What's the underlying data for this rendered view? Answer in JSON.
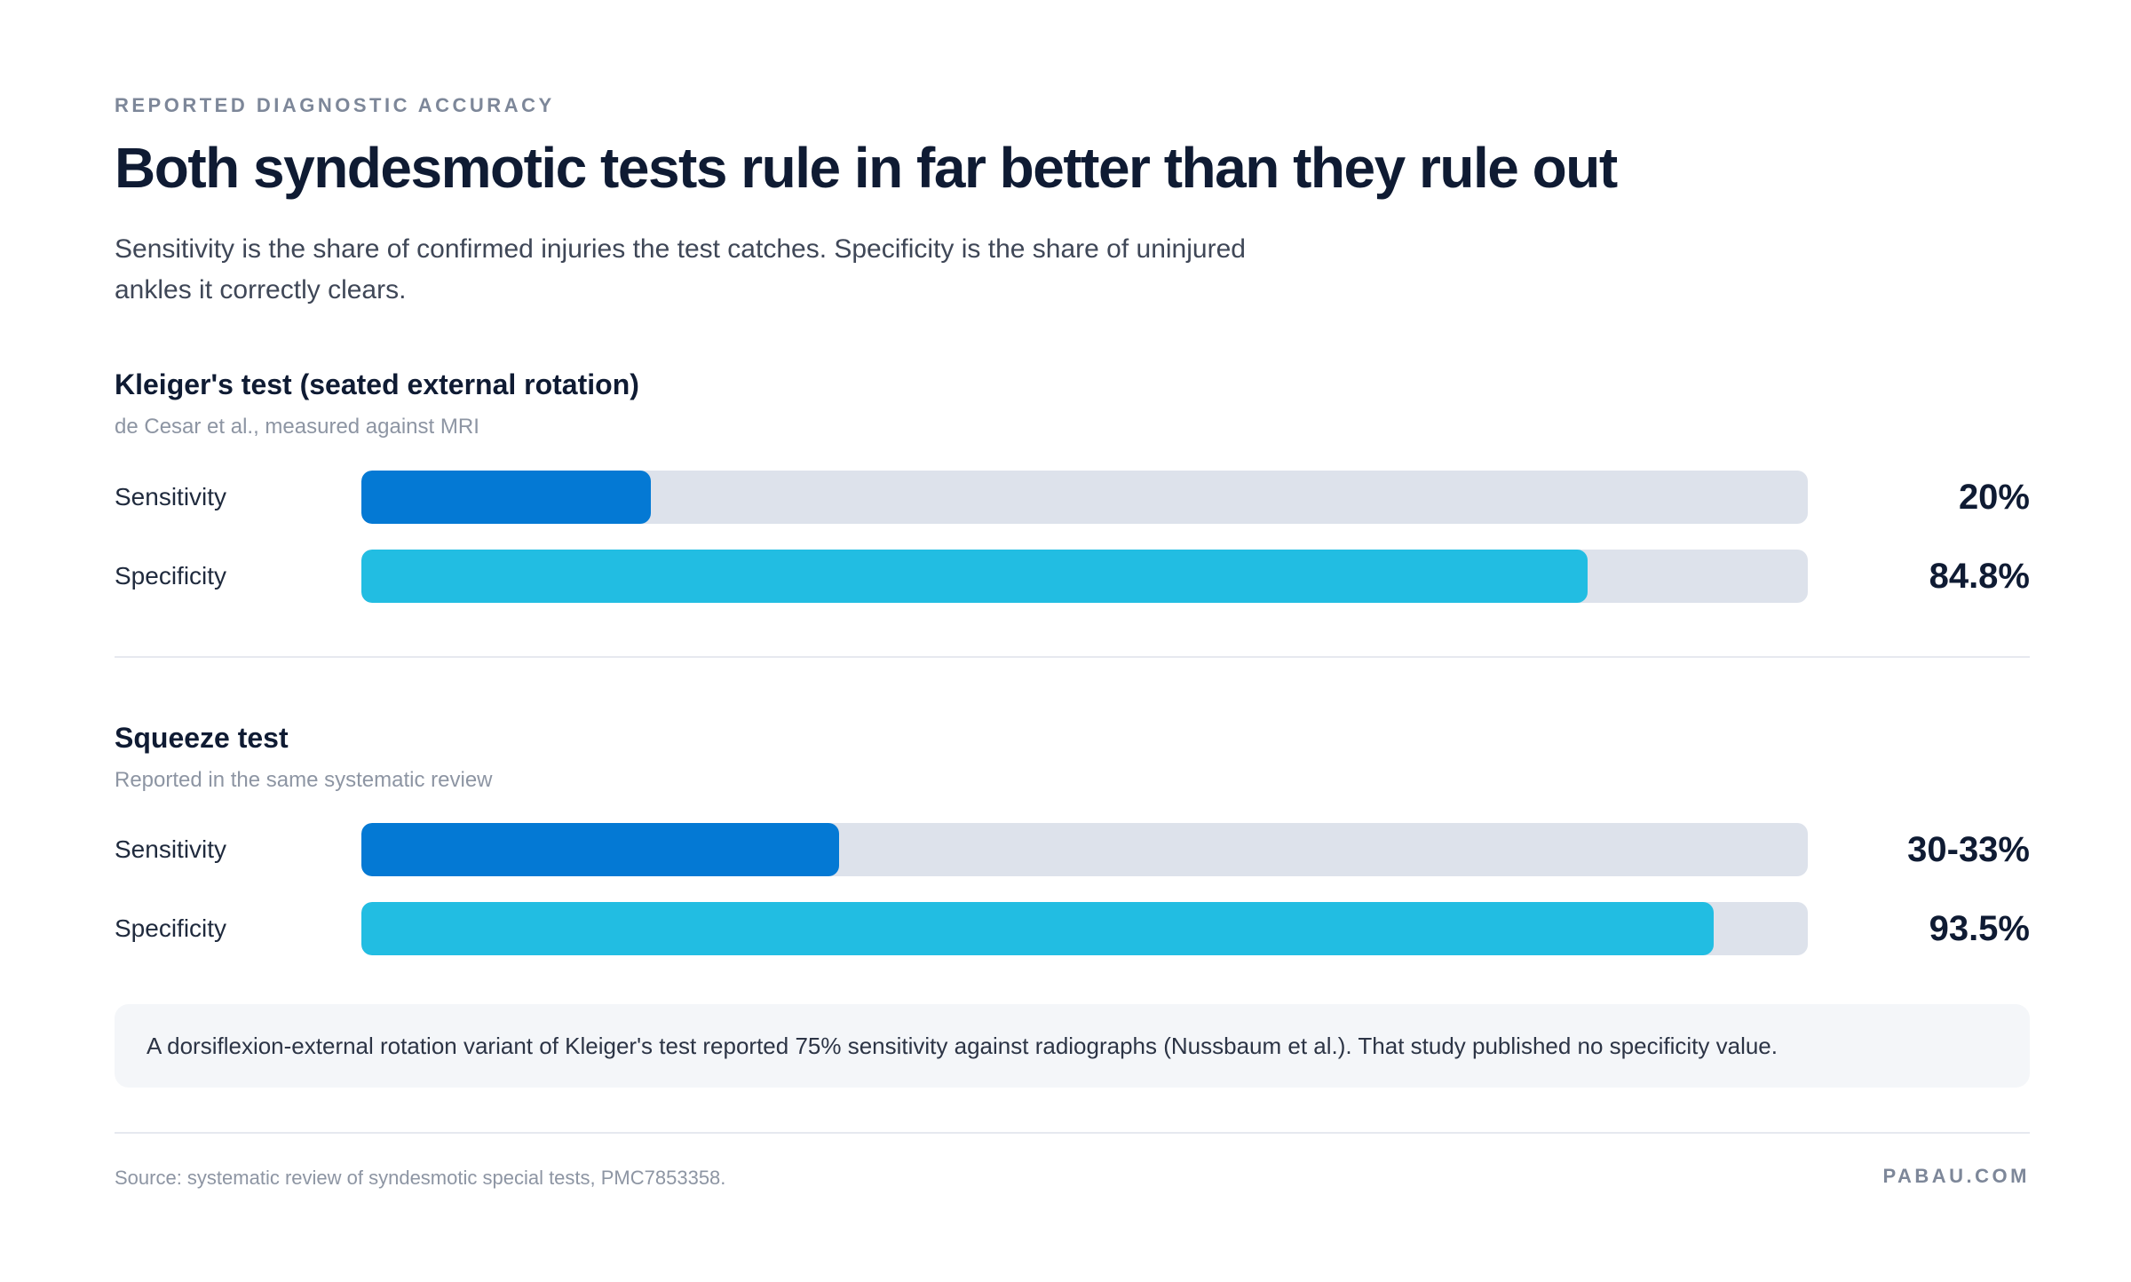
{
  "header": {
    "eyebrow": "REPORTED DIAGNOSTIC ACCURACY",
    "title": "Both syndesmotic tests rule in far better than they rule out",
    "subtitle": "Sensitivity is the share of confirmed injuries the test catches. Specificity is the share of uninjured ankles it correctly clears."
  },
  "chart_data": {
    "type": "bar",
    "orientation": "horizontal",
    "xlim": [
      0,
      100
    ],
    "groups": [
      {
        "title": "Kleiger's test (seated external rotation)",
        "note": "de Cesar et al., measured against MRI",
        "bars": [
          {
            "label": "Sensitivity",
            "value": 20,
            "display": "20%",
            "color": "#0479d4"
          },
          {
            "label": "Specificity",
            "value": 84.8,
            "display": "84.8%",
            "color": "#22bde2"
          }
        ]
      },
      {
        "title": "Squeeze test",
        "note": "Reported in the same systematic review",
        "bars": [
          {
            "label": "Sensitivity",
            "value": 33,
            "display": "30-33%",
            "color": "#0479d4"
          },
          {
            "label": "Specificity",
            "value": 93.5,
            "display": "93.5%",
            "color": "#22bde2"
          }
        ]
      }
    ]
  },
  "callout": "A dorsiflexion-external rotation variant of Kleiger's test reported 75% sensitivity against radiographs (Nussbaum et al.). That study published no specificity value.",
  "footer": {
    "source": "Source: systematic review of syndesmotic special tests, PMC7853358.",
    "brand": "PABAU.COM"
  },
  "colors": {
    "sensitivity": "#0479d4",
    "specificity": "#22bde2",
    "track": "#dde2eb"
  }
}
